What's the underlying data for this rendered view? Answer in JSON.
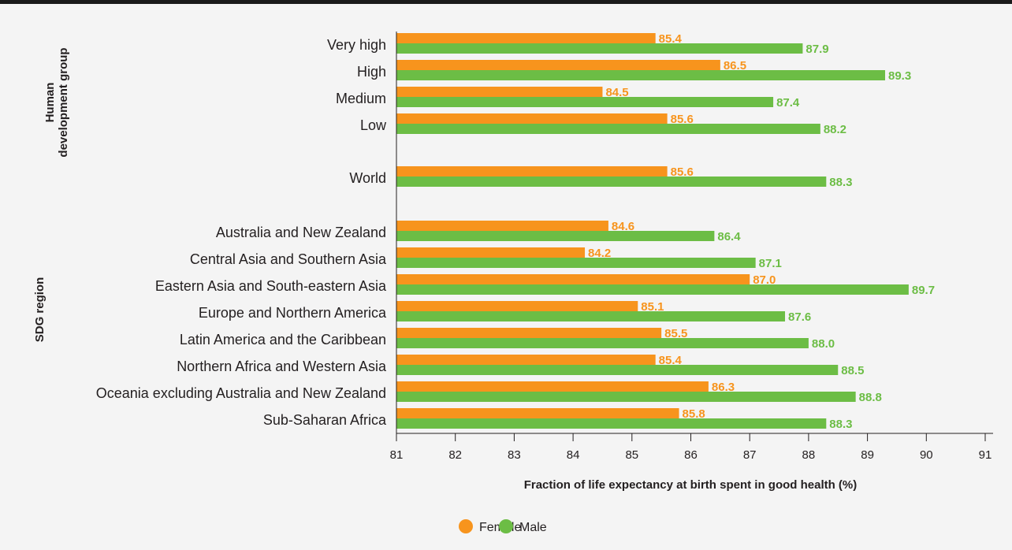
{
  "colors": {
    "female": "#f7941d",
    "male": "#6cbd45",
    "axis": "#231f20"
  },
  "chart_data": {
    "type": "bar",
    "orientation": "horizontal",
    "xlabel": "Fraction of life expectancy at birth spent in good health (%)",
    "xlim": [
      81,
      91
    ],
    "xticks": [
      81,
      82,
      83,
      84,
      85,
      86,
      87,
      88,
      89,
      90,
      91
    ],
    "grid": false,
    "legend": "bottom",
    "groups": [
      {
        "label": "Human\ndevelopment group",
        "categories": [
          "Very high",
          "High",
          "Medium",
          "Low"
        ]
      },
      {
        "label": "",
        "categories": [
          "World"
        ]
      },
      {
        "label": "SDG region",
        "categories": [
          "Australia and New Zealand",
          "Central Asia and Southern Asia",
          "Eastern Asia and South-eastern Asia",
          "Europe and Northern America",
          "Latin America and the Caribbean",
          "Northern Africa and Western Asia",
          "Oceania excluding Australia and New Zealand",
          "Sub-Saharan Africa"
        ]
      }
    ],
    "categories": [
      "Very high",
      "High",
      "Medium",
      "Low",
      "World",
      "Australia and New Zealand",
      "Central Asia and Southern Asia",
      "Eastern Asia and South-eastern Asia",
      "Europe and Northern America",
      "Latin America and the Caribbean",
      "Northern Africa and Western Asia",
      "Oceania excluding Australia and New Zealand",
      "Sub-Saharan Africa"
    ],
    "series": [
      {
        "name": "Female",
        "values": [
          85.4,
          86.5,
          84.5,
          85.6,
          85.6,
          84.6,
          84.2,
          87.0,
          85.1,
          85.5,
          85.4,
          86.3,
          85.8
        ],
        "labels": [
          "85.4",
          "86.5",
          "84.5",
          "85.6",
          "85.6",
          "84.6",
          "84.2",
          "87.0",
          "85.1",
          "85.5",
          "85.4",
          "86.3",
          "85.8"
        ]
      },
      {
        "name": "Male",
        "values": [
          87.9,
          89.3,
          87.4,
          88.2,
          88.3,
          86.4,
          87.1,
          89.7,
          87.6,
          88.0,
          88.5,
          88.8,
          88.3
        ],
        "labels": [
          "87.9",
          "89.3",
          "87.4",
          "88.2",
          "88.3",
          "86.4",
          "87.1",
          "89.7",
          "87.6",
          "88.0",
          "88.5",
          "88.8",
          "88.3"
        ]
      }
    ]
  }
}
